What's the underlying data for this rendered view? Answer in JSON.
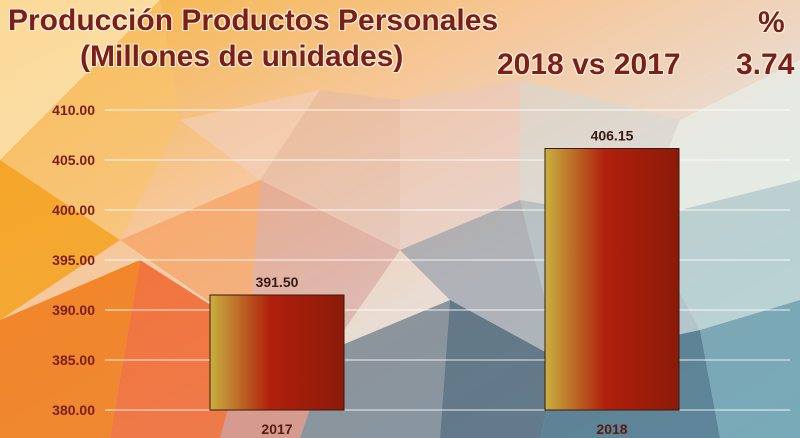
{
  "header": {
    "title_line1": "Producción Productos Personales",
    "title_line2": "(Millones de unidades)",
    "comparison": "2018 vs 2017",
    "percent_symbol": "%",
    "percent_value": "3.74"
  },
  "colors": {
    "title": "#7a1f1a",
    "bar_dark": "#9a1a0a",
    "bar_light": "#c8b040",
    "gridline": "#ffffff"
  },
  "chart_data": {
    "type": "bar",
    "categories": [
      "2017",
      "2018"
    ],
    "values": [
      391.5,
      406.15
    ],
    "value_labels": [
      "391.50",
      "406.15"
    ],
    "y_ticks": [
      "380.00",
      "385.00",
      "390.00",
      "395.00",
      "400.00",
      "405.00",
      "410.00"
    ],
    "ylim": [
      380,
      410
    ],
    "grid": true,
    "title": "",
    "xlabel": "",
    "ylabel": ""
  }
}
